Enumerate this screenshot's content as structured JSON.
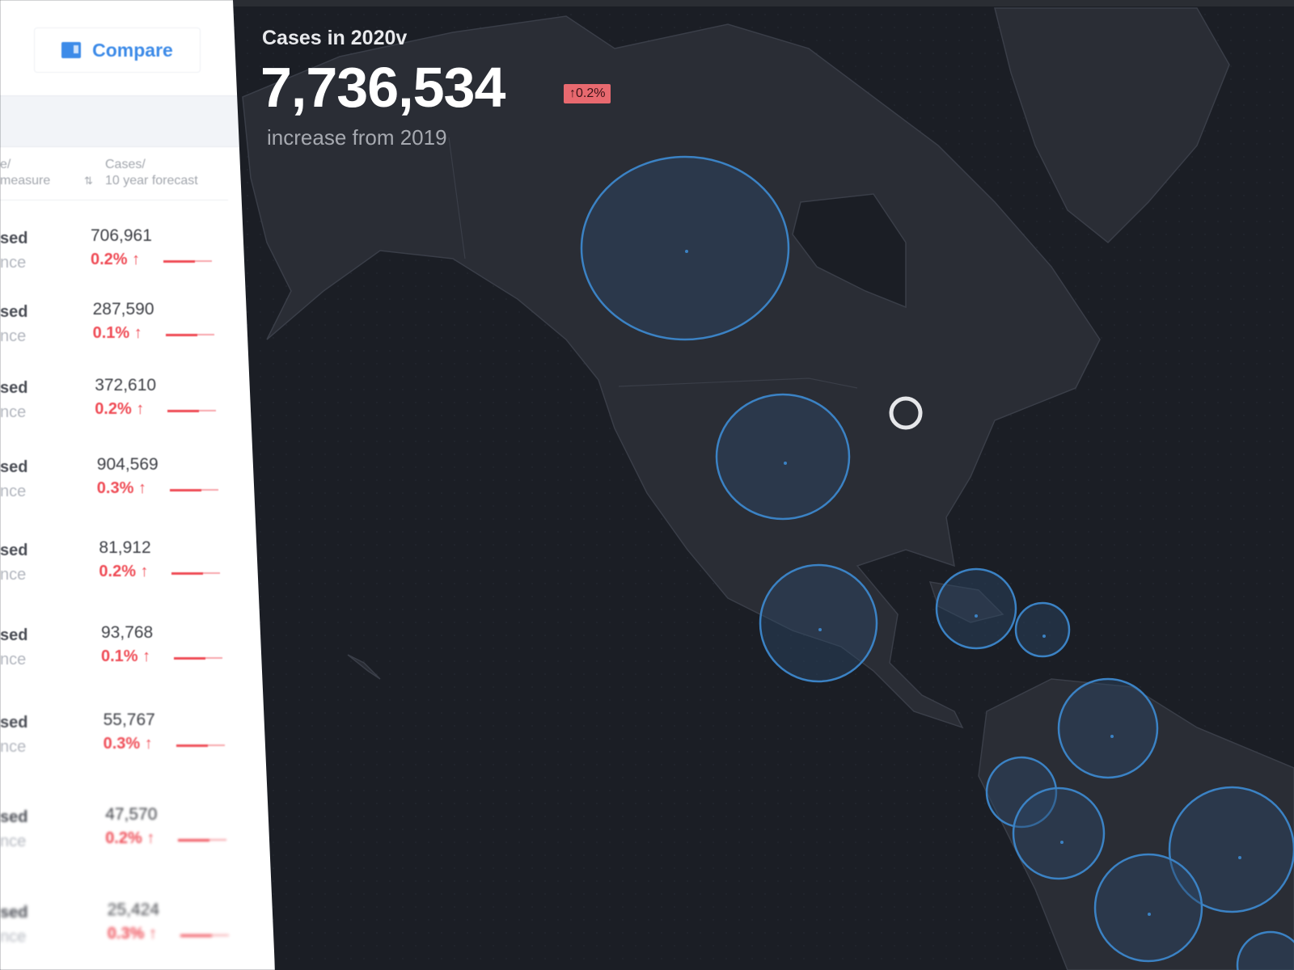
{
  "sidebar": {
    "compare_label": "Compare",
    "compare_icon": "compare-icon",
    "columns": {
      "left_line1": "e/",
      "left_line2": "measure",
      "right_line1": "Cases/",
      "right_line2": "10 year forecast",
      "sort_icon": "sort-icon"
    },
    "rows": [
      {
        "label1": "sed",
        "label2": "nce",
        "value": "706,961",
        "pct": "0.2% ↑"
      },
      {
        "label1": "sed",
        "label2": "nce",
        "value": "287,590",
        "pct": "0.1% ↑"
      },
      {
        "label1": "sed",
        "label2": "nce",
        "value": "372,610",
        "pct": "0.2% ↑"
      },
      {
        "label1": "sed",
        "label2": "nce",
        "value": "904,569",
        "pct": "0.3% ↑"
      },
      {
        "label1": "sed",
        "label2": "nce",
        "value": "81,912",
        "pct": "0.2% ↑"
      },
      {
        "label1": "sed",
        "label2": "nce",
        "value": "93,768",
        "pct": "0.1% ↑"
      },
      {
        "label1": "sed",
        "label2": "nce",
        "value": "55,767",
        "pct": "0.3% ↑"
      },
      {
        "label1": "sed",
        "label2": "nce",
        "value": "47,570",
        "pct": "0.2% ↑"
      },
      {
        "label1": "sed",
        "label2": "nce",
        "value": "25,424",
        "pct": "0.3% ↑"
      }
    ]
  },
  "summary": {
    "title": "Cases in 2020v",
    "total": "7,736,534",
    "change_badge": "↑0.2%",
    "subtitle": "increase from 2019"
  },
  "colors": {
    "accent": "#3d8be8",
    "increase": "#ef4b55",
    "badge": "#e8696f",
    "map_bg": "#1b1e25",
    "land": "#2a2d35",
    "bubble": "#3b82c4"
  }
}
